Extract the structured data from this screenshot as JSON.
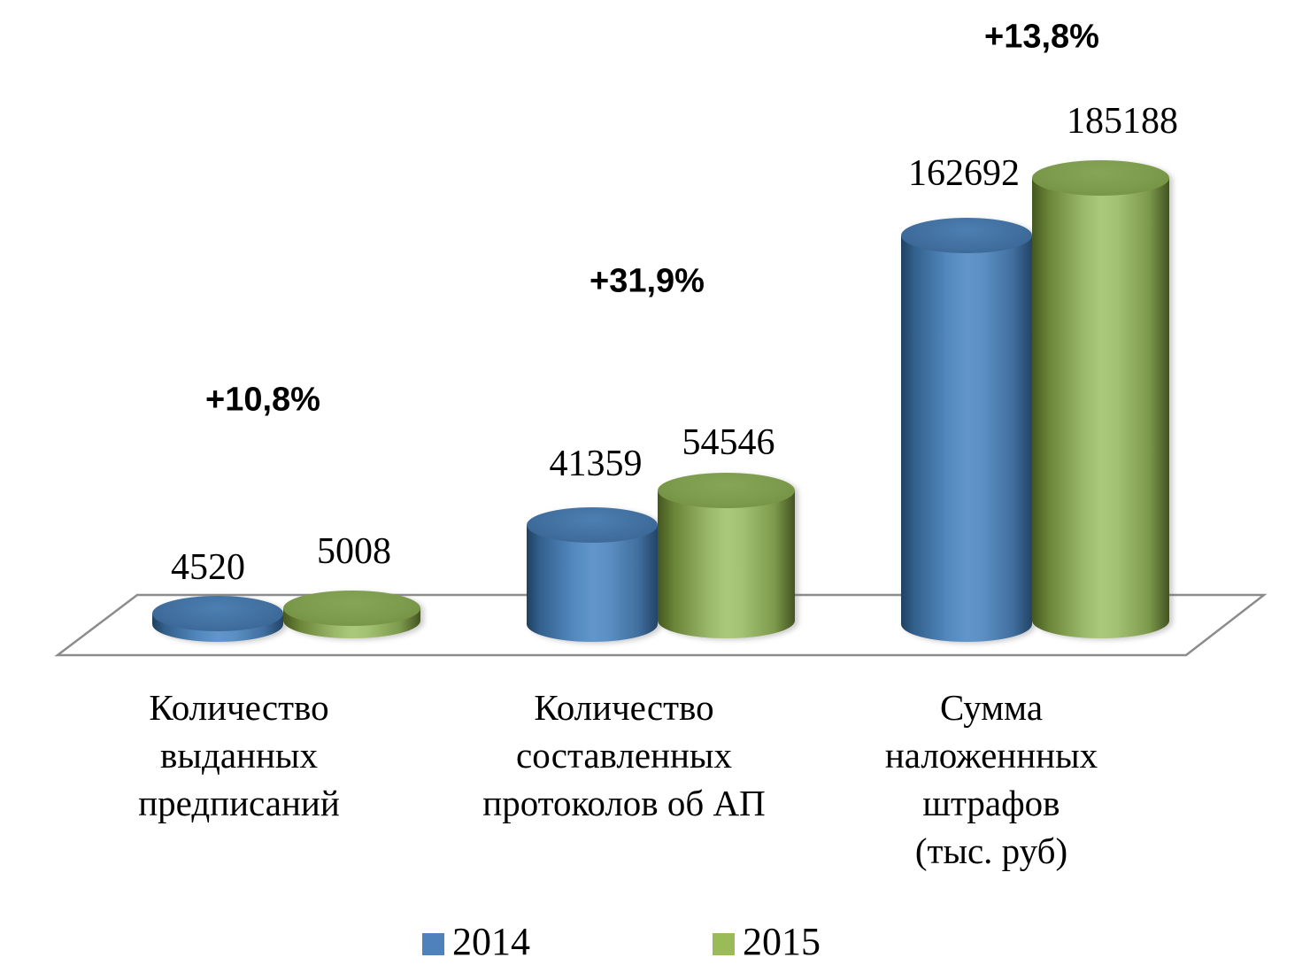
{
  "chart_data": {
    "type": "bar",
    "style": "3d-cylinder",
    "title": "",
    "categories": [
      "Количество выданных предписаний",
      "Количество составленных протоколов об АП",
      "Сумма наложеннных штрафов (тыс. руб)"
    ],
    "tick_labels": [
      "Количество\nвыданных\nпредписаний",
      "Количество\nсоставленных\nпротоколов об АП",
      "Сумма\nналоженнных\nштрафов\n(тыс. руб)"
    ],
    "series": [
      {
        "name": "2014",
        "color": "#4F81BD",
        "values": [
          4520,
          41359,
          162692
        ],
        "value_labels": [
          "4520",
          "41359",
          "162692"
        ]
      },
      {
        "name": "2015",
        "color": "#9BBB59",
        "values": [
          5008,
          54546,
          185188
        ],
        "value_labels": [
          "5008",
          "54546",
          "185188"
        ]
      }
    ],
    "change_annotations": [
      "+10,8%",
      "+31,9%",
      "+13,8%"
    ],
    "legend": {
      "position": "bottom",
      "entries": [
        "2014",
        "2015"
      ]
    },
    "axes": {
      "y_axis_visible": false,
      "gridlines": false
    }
  },
  "colors": {
    "series_2014": "#4F81BD",
    "series_2015": "#9BBB59",
    "floor_stroke": "#8C8C8C",
    "text": "#000000",
    "background": "#FFFFFF"
  }
}
